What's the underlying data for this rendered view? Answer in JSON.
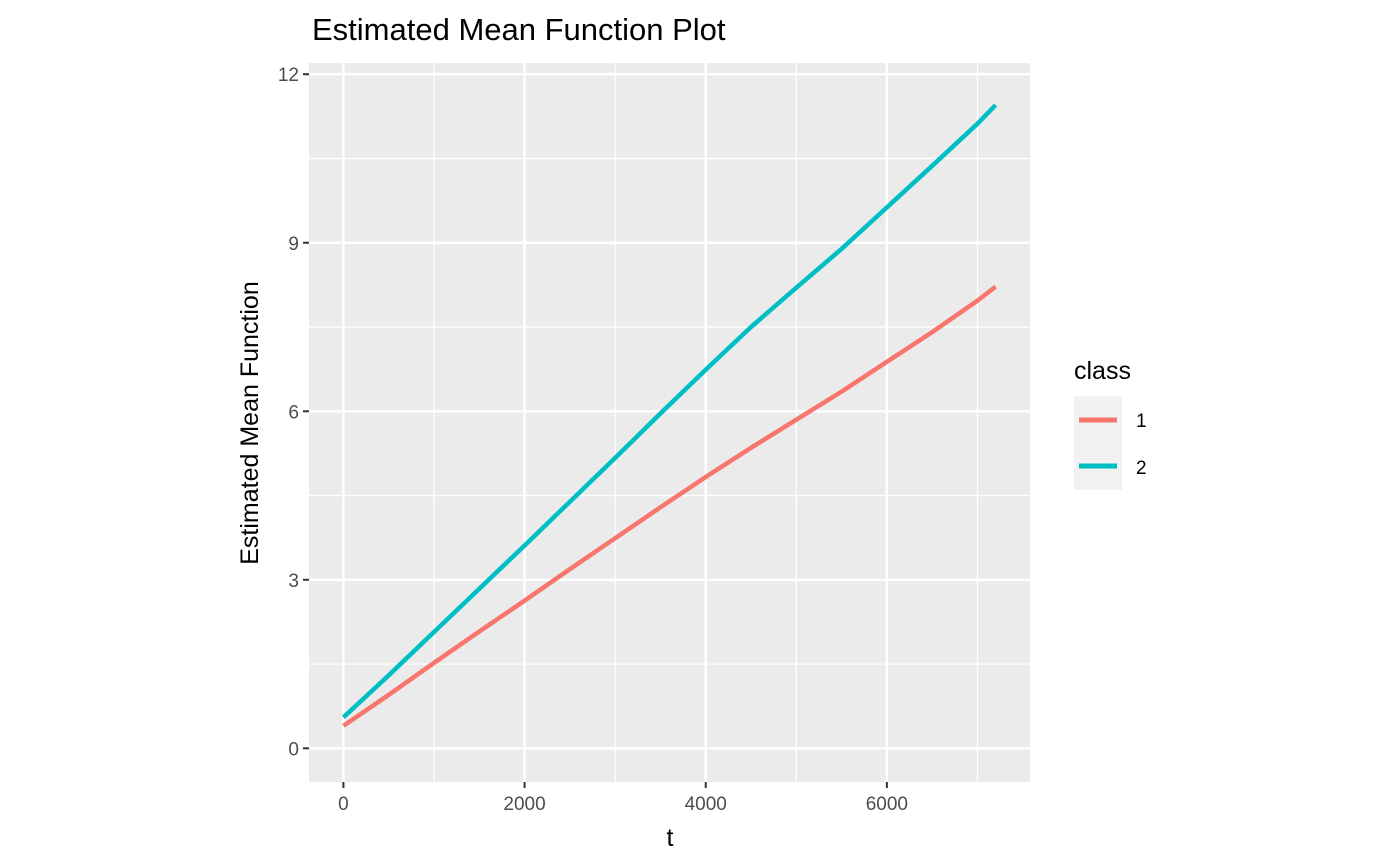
{
  "chart_data": {
    "type": "line",
    "title": "Estimated Mean Function Plot",
    "xlabel": "t",
    "ylabel": "Estimated Mean Function",
    "xlim": [
      -380,
      7580
    ],
    "ylim": [
      -0.6,
      12.2
    ],
    "xticks": [
      0,
      2000,
      4000,
      6000
    ],
    "xtick_labels": [
      "0",
      "2000",
      "4000",
      "6000"
    ],
    "yticks": [
      0,
      3,
      6,
      9,
      12
    ],
    "ytick_labels": [
      "0",
      "3",
      "6",
      "9",
      "12"
    ],
    "x_minor": [
      1000,
      3000,
      5000,
      7000
    ],
    "y_minor": [
      1.5,
      4.5,
      7.5,
      10.5
    ],
    "grid": true,
    "panel_background": "#ebebeb",
    "grid_color": "#ffffff",
    "legend": {
      "title": "class",
      "position": "right",
      "background": "#f2f2f2"
    },
    "series": [
      {
        "name": "1",
        "color": "#f8766d",
        "x": [
          0,
          500,
          1000,
          1500,
          2000,
          2500,
          3000,
          3500,
          4000,
          4500,
          5000,
          5500,
          6000,
          6500,
          7000,
          7200
        ],
        "y": [
          0.4,
          0.95,
          1.52,
          2.08,
          2.63,
          3.19,
          3.74,
          4.29,
          4.83,
          5.35,
          5.85,
          6.35,
          6.88,
          7.41,
          7.97,
          8.22
        ]
      },
      {
        "name": "2",
        "color": "#00bfc4",
        "x": [
          0,
          500,
          1000,
          1500,
          2000,
          2500,
          3000,
          3500,
          4000,
          4500,
          5000,
          5500,
          6000,
          6500,
          7000,
          7200
        ],
        "y": [
          0.55,
          1.3,
          2.07,
          2.84,
          3.61,
          4.39,
          5.17,
          5.96,
          6.74,
          7.5,
          8.2,
          8.89,
          9.63,
          10.37,
          11.12,
          11.45
        ]
      }
    ]
  }
}
